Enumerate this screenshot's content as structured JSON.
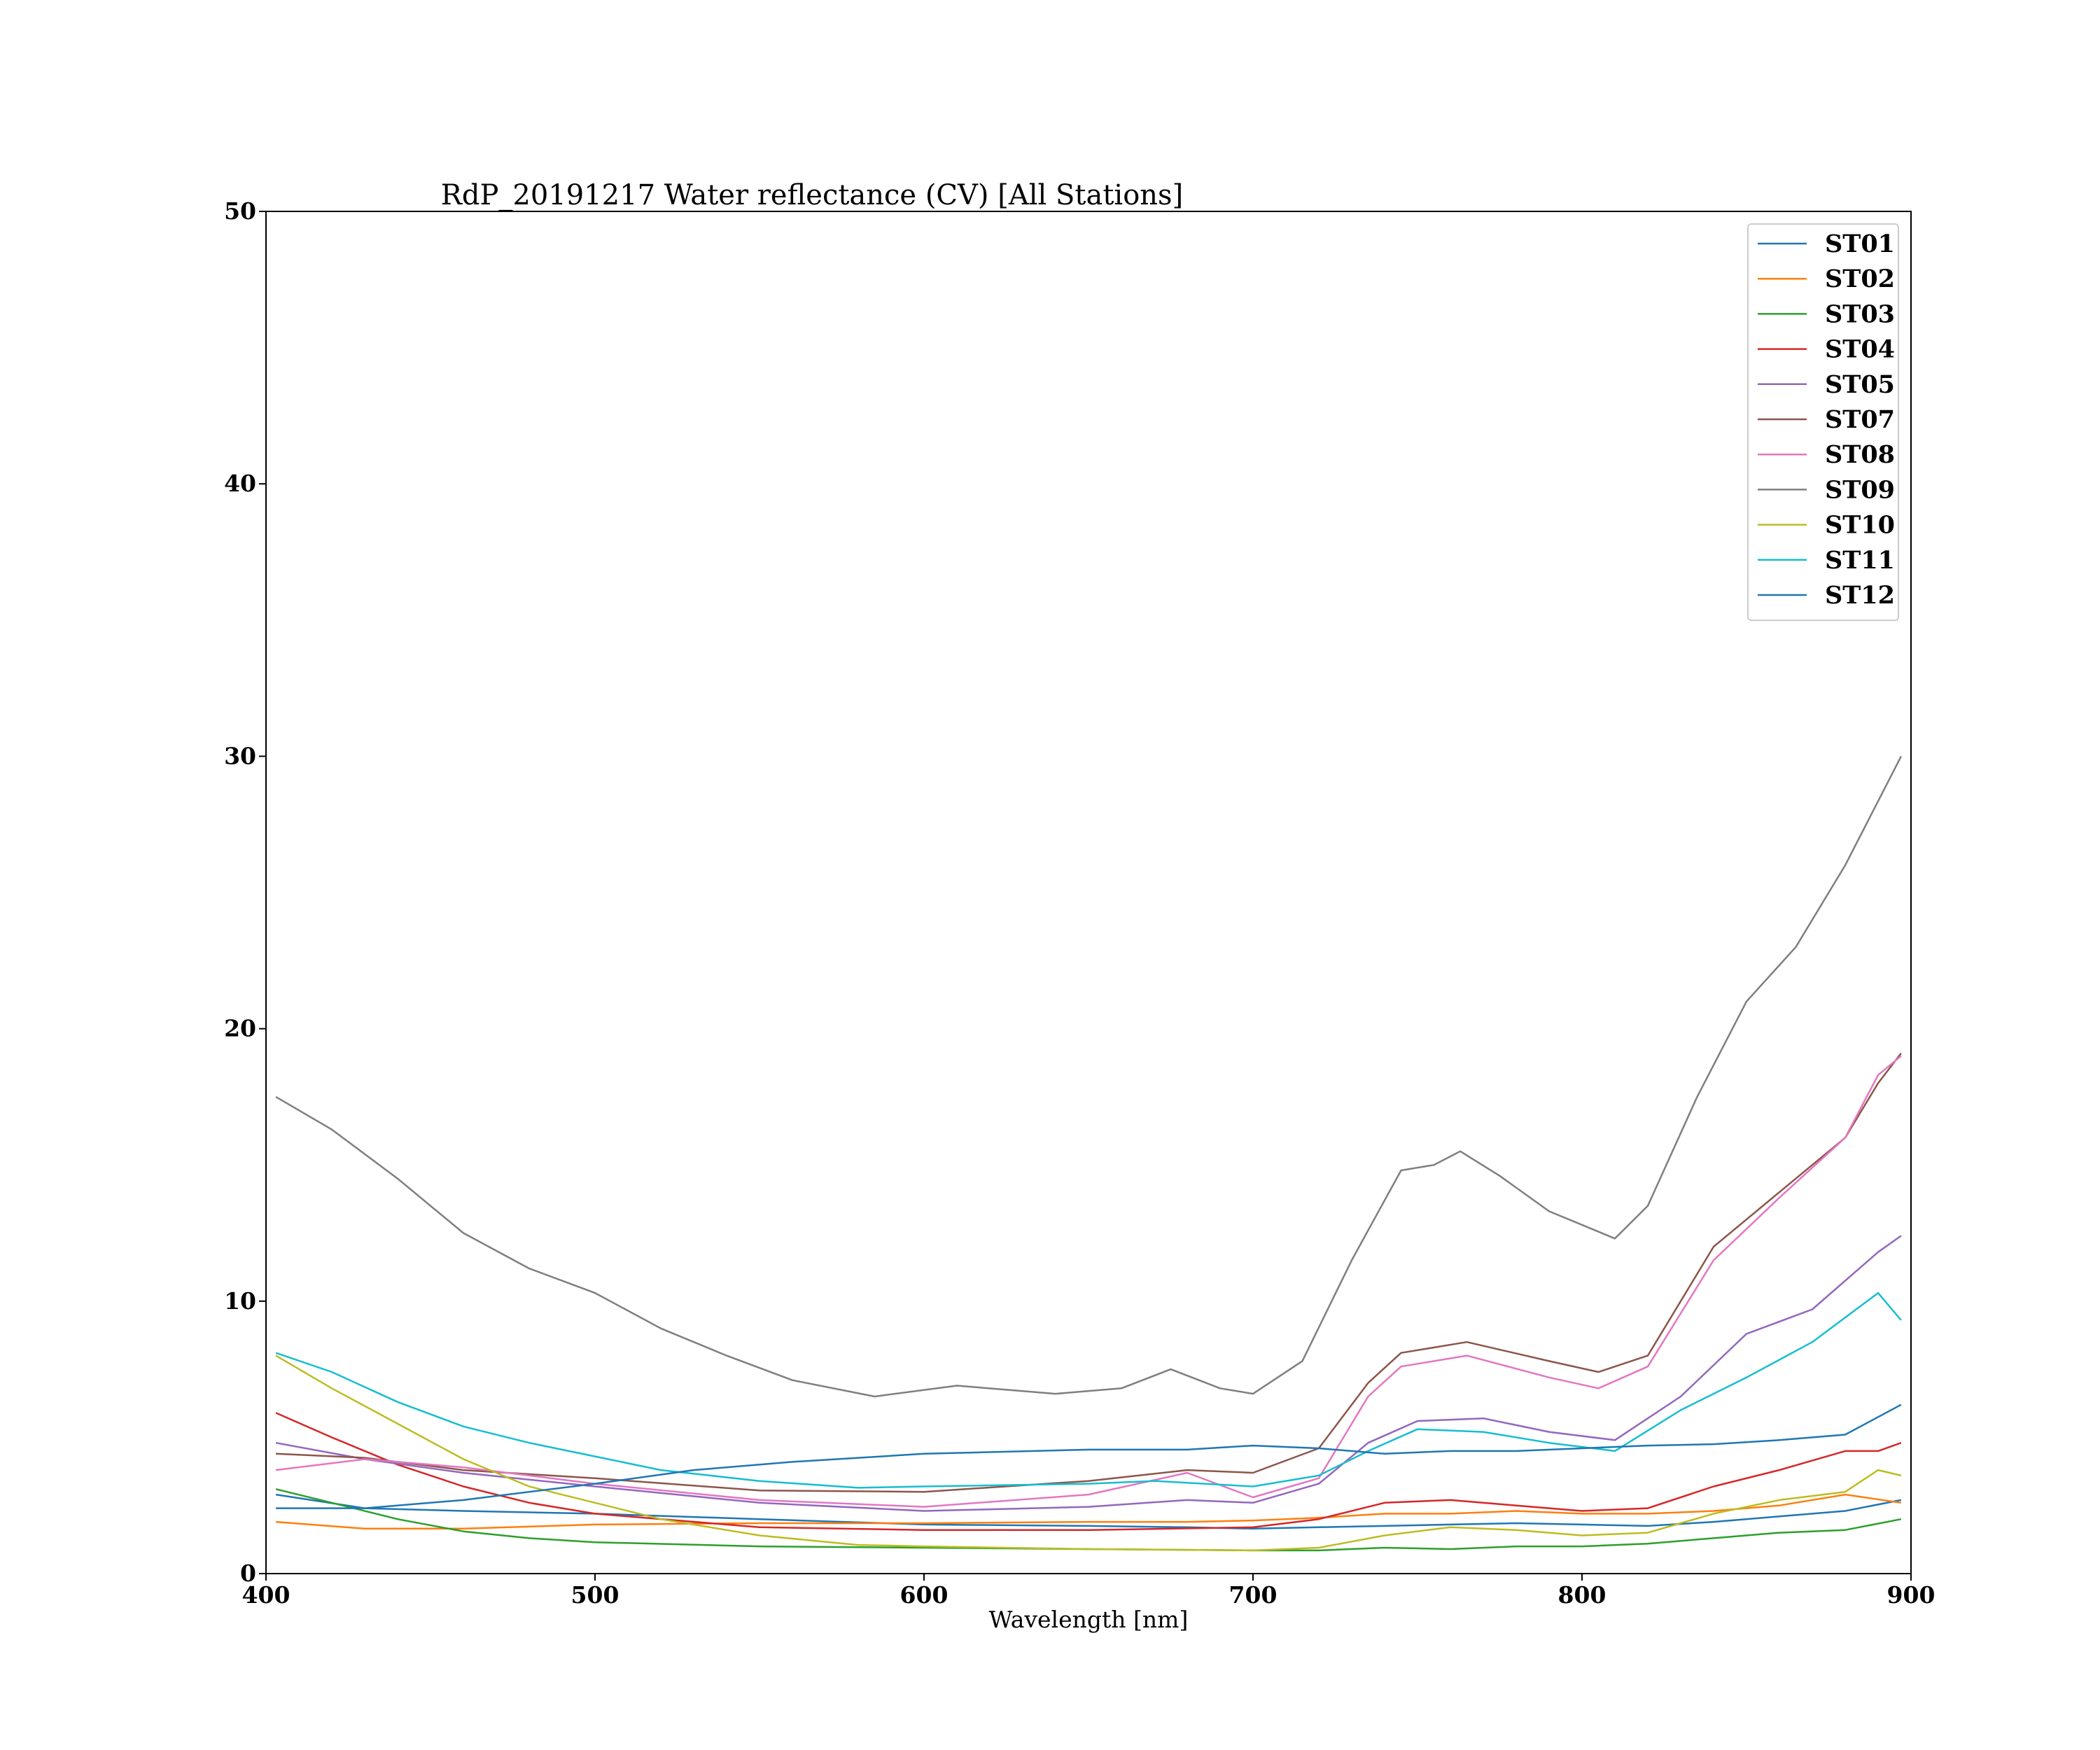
{
  "chart_data": {
    "type": "line",
    "title": "RdP_20191217 Water reflectance (CV) [All Stations]",
    "xlabel": "Wavelength [nm]",
    "ylabel": "",
    "xlim": [
      400,
      900
    ],
    "ylim": [
      0,
      50
    ],
    "xticks": [
      "400",
      "500",
      "600",
      "700",
      "800",
      "900"
    ],
    "yticks": [
      "0",
      "10",
      "20",
      "30",
      "40",
      "50"
    ],
    "grid": false,
    "legend_position": "top-right",
    "series": [
      {
        "name": "ST01",
        "color": "#1f77b4",
        "x": [
          403,
          430,
          460,
          500,
          550,
          600,
          650,
          680,
          700,
          720,
          740,
          760,
          780,
          800,
          820,
          840,
          860,
          880,
          897
        ],
        "y": [
          2.9,
          2.4,
          2.3,
          2.2,
          2.0,
          1.8,
          1.75,
          1.7,
          1.65,
          1.7,
          1.75,
          1.8,
          1.85,
          1.8,
          1.75,
          1.9,
          2.1,
          2.3,
          2.7
        ]
      },
      {
        "name": "ST02",
        "color": "#ff7f0e",
        "x": [
          403,
          430,
          460,
          500,
          550,
          600,
          650,
          680,
          700,
          720,
          740,
          760,
          780,
          800,
          820,
          840,
          860,
          880,
          897
        ],
        "y": [
          1.9,
          1.65,
          1.65,
          1.8,
          1.85,
          1.85,
          1.9,
          1.9,
          1.95,
          2.05,
          2.2,
          2.2,
          2.3,
          2.2,
          2.2,
          2.3,
          2.5,
          2.9,
          2.6
        ]
      },
      {
        "name": "ST03",
        "color": "#2ca02c",
        "x": [
          403,
          420,
          440,
          460,
          480,
          500,
          550,
          600,
          650,
          700,
          720,
          740,
          760,
          780,
          800,
          820,
          840,
          860,
          880,
          897
        ],
        "y": [
          3.1,
          2.6,
          2.0,
          1.55,
          1.3,
          1.15,
          1.0,
          0.95,
          0.9,
          0.85,
          0.85,
          0.95,
          0.9,
          1.0,
          1.0,
          1.1,
          1.3,
          1.5,
          1.6,
          2.0
        ]
      },
      {
        "name": "ST04",
        "color": "#d62728",
        "x": [
          403,
          420,
          440,
          460,
          480,
          500,
          550,
          600,
          650,
          700,
          720,
          740,
          760,
          780,
          800,
          820,
          840,
          860,
          880,
          890,
          897
        ],
        "y": [
          5.9,
          5.0,
          4.0,
          3.2,
          2.6,
          2.2,
          1.7,
          1.6,
          1.6,
          1.7,
          2.0,
          2.6,
          2.7,
          2.5,
          2.3,
          2.4,
          3.2,
          3.8,
          4.5,
          4.5,
          4.8
        ]
      },
      {
        "name": "ST05",
        "color": "#9467bd",
        "x": [
          403,
          430,
          460,
          500,
          550,
          600,
          650,
          680,
          700,
          720,
          735,
          750,
          770,
          790,
          810,
          830,
          850,
          870,
          890,
          897
        ],
        "y": [
          4.8,
          4.2,
          3.7,
          3.2,
          2.6,
          2.3,
          2.45,
          2.7,
          2.6,
          3.3,
          4.8,
          5.6,
          5.7,
          5.2,
          4.9,
          6.5,
          8.8,
          9.7,
          11.8,
          12.4
        ]
      },
      {
        "name": "ST07",
        "color": "#8c564b",
        "x": [
          403,
          430,
          460,
          500,
          550,
          600,
          650,
          680,
          700,
          720,
          735,
          745,
          765,
          790,
          805,
          820,
          840,
          860,
          880,
          890,
          897
        ],
        "y": [
          4.4,
          4.25,
          3.8,
          3.5,
          3.05,
          3.0,
          3.4,
          3.8,
          3.7,
          4.6,
          7.0,
          8.1,
          8.5,
          7.8,
          7.4,
          8.0,
          12.0,
          14.0,
          16.0,
          18.0,
          19.1
        ]
      },
      {
        "name": "ST08",
        "color": "#e377c2",
        "x": [
          403,
          430,
          460,
          500,
          550,
          600,
          650,
          680,
          700,
          720,
          735,
          745,
          765,
          790,
          805,
          820,
          840,
          860,
          880,
          890,
          897
        ],
        "y": [
          3.8,
          4.2,
          3.9,
          3.3,
          2.7,
          2.45,
          2.9,
          3.7,
          2.8,
          3.5,
          6.5,
          7.6,
          8.0,
          7.2,
          6.8,
          7.6,
          11.5,
          13.8,
          16.0,
          18.3,
          19.0
        ]
      },
      {
        "name": "ST09",
        "color": "#7f7f7f",
        "x": [
          403,
          420,
          440,
          460,
          480,
          500,
          520,
          540,
          560,
          585,
          610,
          640,
          660,
          675,
          690,
          700,
          715,
          730,
          745,
          755,
          763,
          775,
          790,
          810,
          820,
          835,
          850,
          865,
          880,
          897
        ],
        "y": [
          17.5,
          16.3,
          14.5,
          12.5,
          11.2,
          10.3,
          9.0,
          8.0,
          7.1,
          6.5,
          6.9,
          6.6,
          6.8,
          7.5,
          6.8,
          6.6,
          7.8,
          11.5,
          14.8,
          15.0,
          15.5,
          14.6,
          13.3,
          12.3,
          13.5,
          17.5,
          21.0,
          23.0,
          26.0,
          30.0
        ]
      },
      {
        "name": "ST10",
        "color": "#bcbd22",
        "x": [
          403,
          420,
          440,
          460,
          480,
          500,
          520,
          550,
          580,
          600,
          650,
          700,
          720,
          740,
          760,
          780,
          800,
          820,
          840,
          860,
          880,
          890,
          897
        ],
        "y": [
          8.0,
          6.8,
          5.5,
          4.2,
          3.2,
          2.6,
          2.0,
          1.4,
          1.05,
          1.0,
          0.9,
          0.85,
          0.95,
          1.4,
          1.7,
          1.6,
          1.4,
          1.5,
          2.2,
          2.7,
          3.0,
          3.8,
          3.6
        ]
      },
      {
        "name": "ST11",
        "color": "#17becf",
        "x": [
          403,
          420,
          440,
          460,
          480,
          500,
          520,
          550,
          580,
          600,
          650,
          670,
          700,
          720,
          735,
          750,
          770,
          790,
          810,
          830,
          850,
          870,
          890,
          897
        ],
        "y": [
          8.1,
          7.4,
          6.3,
          5.4,
          4.8,
          4.3,
          3.8,
          3.4,
          3.15,
          3.2,
          3.3,
          3.4,
          3.2,
          3.6,
          4.5,
          5.3,
          5.2,
          4.8,
          4.5,
          6.0,
          7.2,
          8.5,
          10.3,
          9.3
        ]
      },
      {
        "name": "ST12",
        "color": "#1f77b4",
        "x": [
          403,
          430,
          460,
          500,
          530,
          560,
          600,
          650,
          680,
          700,
          720,
          740,
          760,
          780,
          800,
          820,
          840,
          860,
          880,
          897
        ],
        "y": [
          2.4,
          2.4,
          2.7,
          3.3,
          3.8,
          4.1,
          4.4,
          4.55,
          4.55,
          4.7,
          4.6,
          4.4,
          4.5,
          4.5,
          4.6,
          4.7,
          4.75,
          4.9,
          5.1,
          6.2
        ]
      }
    ]
  }
}
